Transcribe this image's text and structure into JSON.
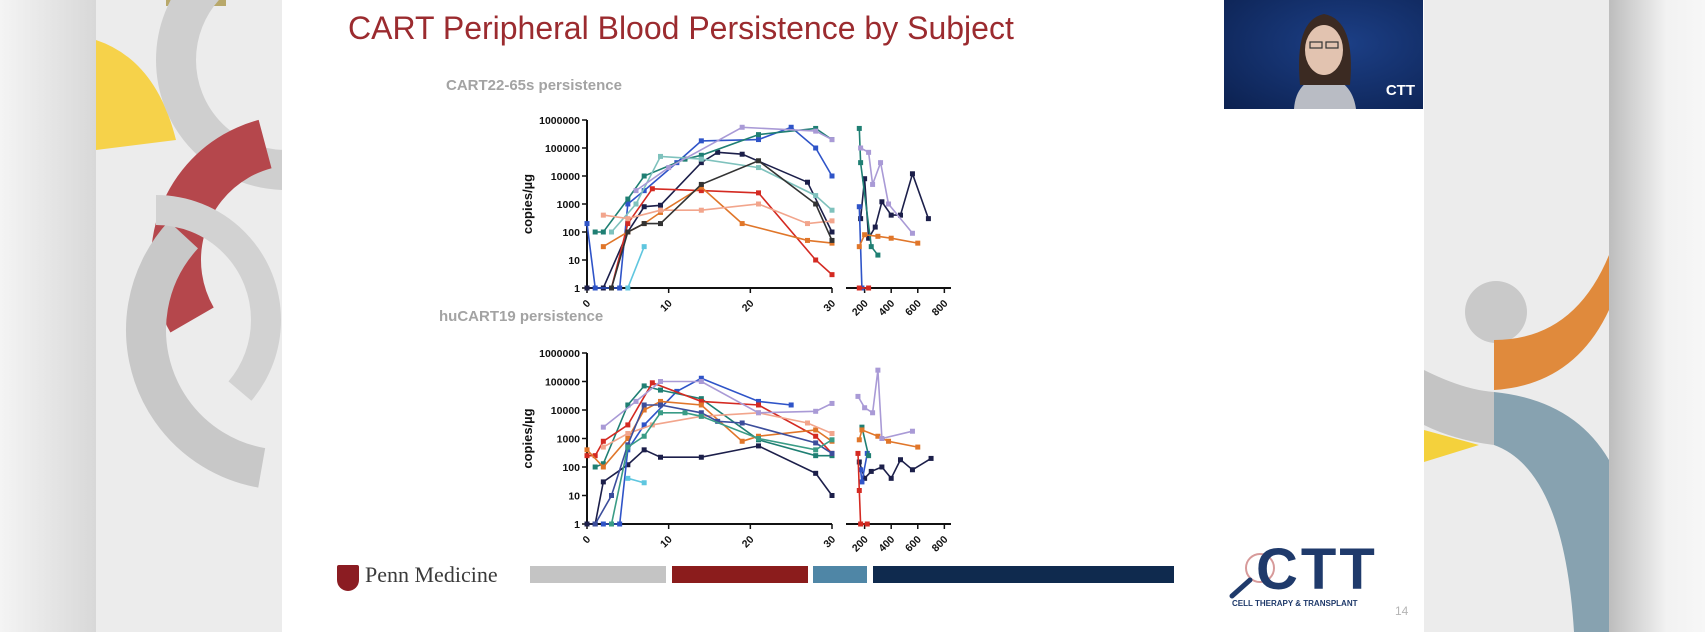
{
  "slide": {
    "title": "CART Peripheral Blood Persistence by Subject",
    "footer_logo": "Penn Medicine",
    "brand_logo": "CTT",
    "brand_tagline": "CELL THERAPY & TRANSPLANT",
    "page_number": "14",
    "footer_bar_colors": [
      "#c4c4c4",
      "#8b1c1c",
      "#4f86a6",
      "#0f2a4e"
    ],
    "title_color": "#9b2b2f"
  },
  "video": {
    "logo": "CTT"
  },
  "chart_data": [
    {
      "type": "line",
      "title": "CART22-65s persistence",
      "ylabel": "copies/µg",
      "yscale": "log",
      "ylim": [
        1,
        1000000
      ],
      "yticks": [
        "1",
        "10",
        "100",
        "1000",
        "10000",
        "100000",
        "1000000"
      ],
      "x_segments": [
        {
          "xlim": [
            0,
            30
          ],
          "ticks": [
            "0",
            "10",
            "20",
            "30"
          ]
        },
        {
          "xlim": [
            60,
            850
          ],
          "ticks": [
            "200",
            "400",
            "600",
            "800"
          ]
        }
      ],
      "grid": false,
      "series": [
        {
          "color": "#1c1f4a",
          "points": [
            [
              0,
              1
            ],
            [
              2,
              1
            ],
            [
              5,
              100
            ],
            [
              7,
              800
            ],
            [
              9,
              900
            ],
            [
              14,
              30000
            ],
            [
              16,
              70000
            ],
            [
              19,
              60000
            ],
            [
              27,
              6000
            ],
            [
              30,
              100
            ],
            [
              170,
              300
            ],
            [
              200,
              8000
            ],
            [
              230,
              60
            ],
            [
              280,
              150
            ],
            [
              330,
              1200
            ],
            [
              400,
              400
            ],
            [
              470,
              400
            ],
            [
              560,
              12000
            ],
            [
              680,
              300
            ]
          ]
        },
        {
          "color": "#2f54c8",
          "points": [
            [
              0,
              200
            ],
            [
              1,
              1
            ],
            [
              4,
              1
            ],
            [
              5,
              1000
            ],
            [
              7,
              3000
            ],
            [
              11,
              30000
            ],
            [
              14,
              180000
            ],
            [
              21,
              200000
            ],
            [
              25,
              550000
            ],
            [
              28,
              100000
            ],
            [
              30,
              10000
            ],
            [
              160,
              800
            ],
            [
              180,
              1
            ]
          ]
        },
        {
          "color": "#1f7f73",
          "points": [
            [
              1,
              100
            ],
            [
              2,
              100
            ],
            [
              5,
              1500
            ],
            [
              7,
              10000
            ],
            [
              12,
              40000
            ],
            [
              14,
              55000
            ],
            [
              21,
              300000
            ],
            [
              28,
              500000
            ],
            [
              30,
              200000
            ],
            [
              160,
              500000
            ],
            [
              170,
              30000
            ],
            [
              250,
              30
            ],
            [
              300,
              15
            ]
          ]
        },
        {
          "color": "#5fc6df",
          "points": [
            [
              5,
              1
            ],
            [
              7,
              30
            ]
          ]
        },
        {
          "color": "#7fc2bd",
          "points": [
            [
              3,
              100
            ],
            [
              6,
              1000
            ],
            [
              9,
              50000
            ],
            [
              14,
              40000
            ],
            [
              21,
              20000
            ],
            [
              28,
              2000
            ],
            [
              30,
              600
            ]
          ]
        },
        {
          "color": "#d42a22",
          "points": [
            [
              3,
              1
            ],
            [
              5,
              200
            ],
            [
              8,
              3500
            ],
            [
              14,
              3000
            ],
            [
              21,
              2500
            ],
            [
              28,
              10
            ],
            [
              30,
              3
            ],
            [
              160,
              1
            ],
            [
              230,
              1
            ]
          ]
        },
        {
          "color": "#e0762a",
          "points": [
            [
              2,
              30
            ],
            [
              5,
              100
            ],
            [
              7,
              200
            ],
            [
              9,
              500
            ],
            [
              14,
              4000
            ],
            [
              19,
              200
            ],
            [
              27,
              50
            ],
            [
              30,
              40
            ],
            [
              160,
              30
            ],
            [
              200,
              80
            ],
            [
              300,
              70
            ],
            [
              400,
              60
            ],
            [
              600,
              40
            ]
          ]
        },
        {
          "color": "#f2a58c",
          "points": [
            [
              2,
              400
            ],
            [
              5,
              300
            ],
            [
              9,
              600
            ],
            [
              14,
              600
            ],
            [
              21,
              1000
            ],
            [
              27,
              200
            ],
            [
              30,
              250
            ]
          ]
        },
        {
          "color": "#a99ad6",
          "points": [
            [
              6,
              3000
            ],
            [
              10,
              20000
            ],
            [
              19,
              550000
            ],
            [
              28,
              400000
            ],
            [
              30,
              200000
            ],
            [
              170,
              100000
            ],
            [
              230,
              70000
            ],
            [
              260,
              5000
            ],
            [
              320,
              30000
            ],
            [
              380,
              1000
            ],
            [
              560,
              90
            ]
          ]
        },
        {
          "color": "#333333",
          "points": [
            [
              3,
              1
            ],
            [
              5,
              100
            ],
            [
              7,
              200
            ],
            [
              9,
              200
            ],
            [
              14,
              5000
            ],
            [
              21,
              35000
            ],
            [
              28,
              1000
            ],
            [
              30,
              50
            ]
          ]
        }
      ]
    },
    {
      "type": "line",
      "title": "huCART19 persistence",
      "ylabel": "copies/µg",
      "yscale": "log",
      "ylim": [
        1,
        1000000
      ],
      "yticks": [
        "1",
        "10",
        "100",
        "1000",
        "10000",
        "100000",
        "1000000"
      ],
      "x_segments": [
        {
          "xlim": [
            0,
            30
          ],
          "ticks": [
            "0",
            "10",
            "20",
            "30"
          ]
        },
        {
          "xlim": [
            60,
            850
          ],
          "ticks": [
            "200",
            "400",
            "600",
            "800"
          ]
        }
      ],
      "grid": false,
      "series": [
        {
          "color": "#1c1f4a",
          "points": [
            [
              0,
              1
            ],
            [
              1,
              1
            ],
            [
              2,
              30
            ],
            [
              5,
              120
            ],
            [
              7,
              400
            ],
            [
              9,
              220
            ],
            [
              14,
              220
            ],
            [
              21,
              550
            ],
            [
              28,
              60
            ],
            [
              30,
              10
            ],
            [
              160,
              150
            ],
            [
              200,
              40
            ],
            [
              250,
              70
            ],
            [
              330,
              100
            ],
            [
              400,
              40
            ],
            [
              470,
              180
            ],
            [
              560,
              80
            ],
            [
              700,
              200
            ]
          ]
        },
        {
          "color": "#2f54c8",
          "points": [
            [
              2,
              1
            ],
            [
              4,
              1
            ],
            [
              5,
              400
            ],
            [
              7,
              3000
            ],
            [
              11,
              45000
            ],
            [
              14,
              130000
            ],
            [
              21,
              20000
            ],
            [
              25,
              15000
            ],
            [
              170,
              80
            ],
            [
              180,
              30
            ],
            [
              220,
              300
            ]
          ]
        },
        {
          "color": "#1f7f73",
          "points": [
            [
              1,
              100
            ],
            [
              2,
              130
            ],
            [
              5,
              15000
            ],
            [
              7,
              70000
            ],
            [
              9,
              50000
            ],
            [
              14,
              25000
            ],
            [
              21,
              900
            ],
            [
              28,
              250
            ],
            [
              30,
              250
            ],
            [
              180,
              2500
            ],
            [
              230,
              250
            ]
          ]
        },
        {
          "color": "#5fc6df",
          "points": [
            [
              5,
              40
            ],
            [
              7,
              28
            ]
          ]
        },
        {
          "color": "#d42a22",
          "points": [
            [
              0,
              250
            ],
            [
              1,
              250
            ],
            [
              2,
              800
            ],
            [
              5,
              3000
            ],
            [
              8,
              90000
            ],
            [
              14,
              20000
            ],
            [
              21,
              15000
            ],
            [
              28,
              1200
            ],
            [
              30,
              300
            ],
            [
              150,
              300
            ],
            [
              160,
              15
            ],
            [
              170,
              1
            ],
            [
              220,
              1
            ]
          ]
        },
        {
          "color": "#e0762a",
          "points": [
            [
              0,
              400
            ],
            [
              2,
              100
            ],
            [
              5,
              1000
            ],
            [
              7,
              10000
            ],
            [
              9,
              20000
            ],
            [
              14,
              15000
            ],
            [
              19,
              800
            ],
            [
              21,
              1200
            ],
            [
              28,
              2000
            ],
            [
              30,
              800
            ],
            [
              160,
              900
            ],
            [
              180,
              2000
            ],
            [
              300,
              1200
            ],
            [
              380,
              800
            ],
            [
              600,
              500
            ]
          ]
        },
        {
          "color": "#f2a58c",
          "points": [
            [
              2,
              500
            ],
            [
              5,
              1500
            ],
            [
              8,
              3000
            ],
            [
              14,
              6000
            ],
            [
              21,
              8000
            ],
            [
              27,
              3500
            ],
            [
              30,
              1500
            ]
          ]
        },
        {
          "color": "#a99ad6",
          "points": [
            [
              2,
              2500
            ],
            [
              6,
              20000
            ],
            [
              9,
              100000
            ],
            [
              14,
              100000
            ],
            [
              21,
              8000
            ],
            [
              28,
              9000
            ],
            [
              30,
              17000
            ],
            [
              150,
              30000
            ],
            [
              200,
              12000
            ],
            [
              260,
              8000
            ],
            [
              300,
              250000
            ],
            [
              330,
              1000
            ],
            [
              560,
              1800
            ]
          ]
        },
        {
          "color": "#3c4e9c",
          "points": [
            [
              1,
              1
            ],
            [
              3,
              10
            ],
            [
              5,
              600
            ],
            [
              7,
              15000
            ],
            [
              9,
              15000
            ],
            [
              14,
              8000
            ],
            [
              16,
              4000
            ],
            [
              19,
              3500
            ],
            [
              28,
              700
            ],
            [
              30,
              300
            ]
          ]
        },
        {
          "color": "#3a9c86",
          "points": [
            [
              3,
              1
            ],
            [
              5,
              500
            ],
            [
              7,
              1200
            ],
            [
              9,
              8000
            ],
            [
              12,
              8000
            ],
            [
              14,
              6000
            ],
            [
              21,
              1000
            ],
            [
              28,
              400
            ],
            [
              30,
              900
            ]
          ]
        }
      ]
    }
  ]
}
